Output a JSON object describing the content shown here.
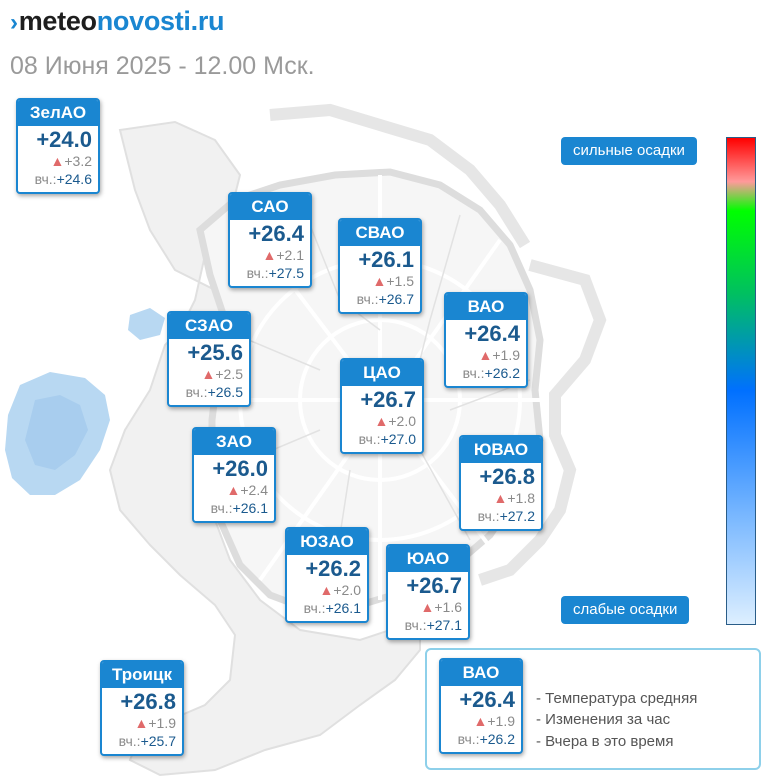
{
  "header": {
    "logo_mark": "›",
    "logo_part1": "meteo",
    "logo_part2": "novosti.ru",
    "date": "08 Июня 2025 - 12.00 Мск."
  },
  "districts": [
    {
      "id": "zelao",
      "name": "ЗелАО",
      "temp": "+24.0",
      "change": "+3.2",
      "yesterday_label": "вч.:",
      "yesterday": "+24.6"
    },
    {
      "id": "sao",
      "name": "САО",
      "temp": "+26.4",
      "change": "+2.1",
      "yesterday_label": "вч.:",
      "yesterday": "+27.5"
    },
    {
      "id": "svao",
      "name": "СВАО",
      "temp": "+26.1",
      "change": "+1.5",
      "yesterday_label": "вч.:",
      "yesterday": "+26.7"
    },
    {
      "id": "vao",
      "name": "ВАО",
      "temp": "+26.4",
      "change": "+1.9",
      "yesterday_label": "вч.:",
      "yesterday": "+26.2"
    },
    {
      "id": "szao",
      "name": "СЗАО",
      "temp": "+25.6",
      "change": "+2.5",
      "yesterday_label": "вч.:",
      "yesterday": "+26.5"
    },
    {
      "id": "cao",
      "name": "ЦАО",
      "temp": "+26.7",
      "change": "+2.0",
      "yesterday_label": "вч.:",
      "yesterday": "+27.0"
    },
    {
      "id": "zao",
      "name": "ЗАО",
      "temp": "+26.0",
      "change": "+2.4",
      "yesterday_label": "вч.:",
      "yesterday": "+26.1"
    },
    {
      "id": "uvao",
      "name": "ЮВАО",
      "temp": "+26.8",
      "change": "+1.8",
      "yesterday_label": "вч.:",
      "yesterday": "+27.2"
    },
    {
      "id": "uzao",
      "name": "ЮЗАО",
      "temp": "+26.2",
      "change": "+2.0",
      "yesterday_label": "вч.:",
      "yesterday": "+26.1"
    },
    {
      "id": "uao",
      "name": "ЮАО",
      "temp": "+26.7",
      "change": "+1.6",
      "yesterday_label": "вч.:",
      "yesterday": "+27.1"
    },
    {
      "id": "troitsk",
      "name": "Троицк",
      "temp": "+26.8",
      "change": "+1.9",
      "yesterday_label": "вч.:",
      "yesterday": "+25.7"
    }
  ],
  "scale": {
    "top_label": "сильные осадки",
    "bottom_label": "слабые осадки"
  },
  "legend": {
    "sample": {
      "name": "ВАО",
      "temp": "+26.4",
      "change": "+1.9",
      "yesterday_label": "вч.:",
      "yesterday": "+26.2"
    },
    "items": [
      "- Температура средняя",
      "- Изменения за час",
      "- Вчера в это время"
    ]
  },
  "colors": {
    "accent": "#1a86d1",
    "temp_text": "#1b5a8e",
    "change_arrow": "#e06a6a"
  }
}
